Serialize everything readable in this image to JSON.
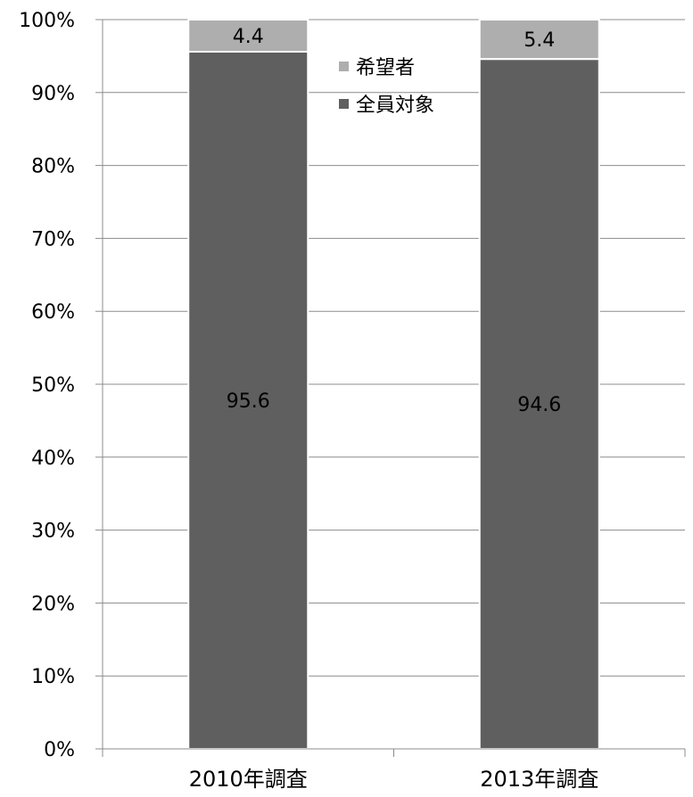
{
  "chart_data": {
    "type": "bar",
    "stacked": true,
    "categories": [
      "2010年調査",
      "2013年調査"
    ],
    "series": [
      {
        "name": "全員対象",
        "values": [
          95.6,
          94.6
        ],
        "color": "#5f5f5f"
      },
      {
        "name": "希望者",
        "values": [
          4.4,
          5.4
        ],
        "color": "#aeaeae"
      }
    ],
    "data_labels": [
      [
        "95.6",
        "94.6"
      ],
      [
        "4.4",
        "5.4"
      ]
    ],
    "y_ticks": [
      "0%",
      "10%",
      "20%",
      "30%",
      "40%",
      "50%",
      "60%",
      "70%",
      "80%",
      "90%",
      "100%"
    ],
    "ylim": [
      0,
      100
    ],
    "grid": true,
    "legend_position": "top-center-inside",
    "legend_order": [
      1,
      0
    ],
    "title": "",
    "xlabel": "",
    "ylabel": ""
  }
}
